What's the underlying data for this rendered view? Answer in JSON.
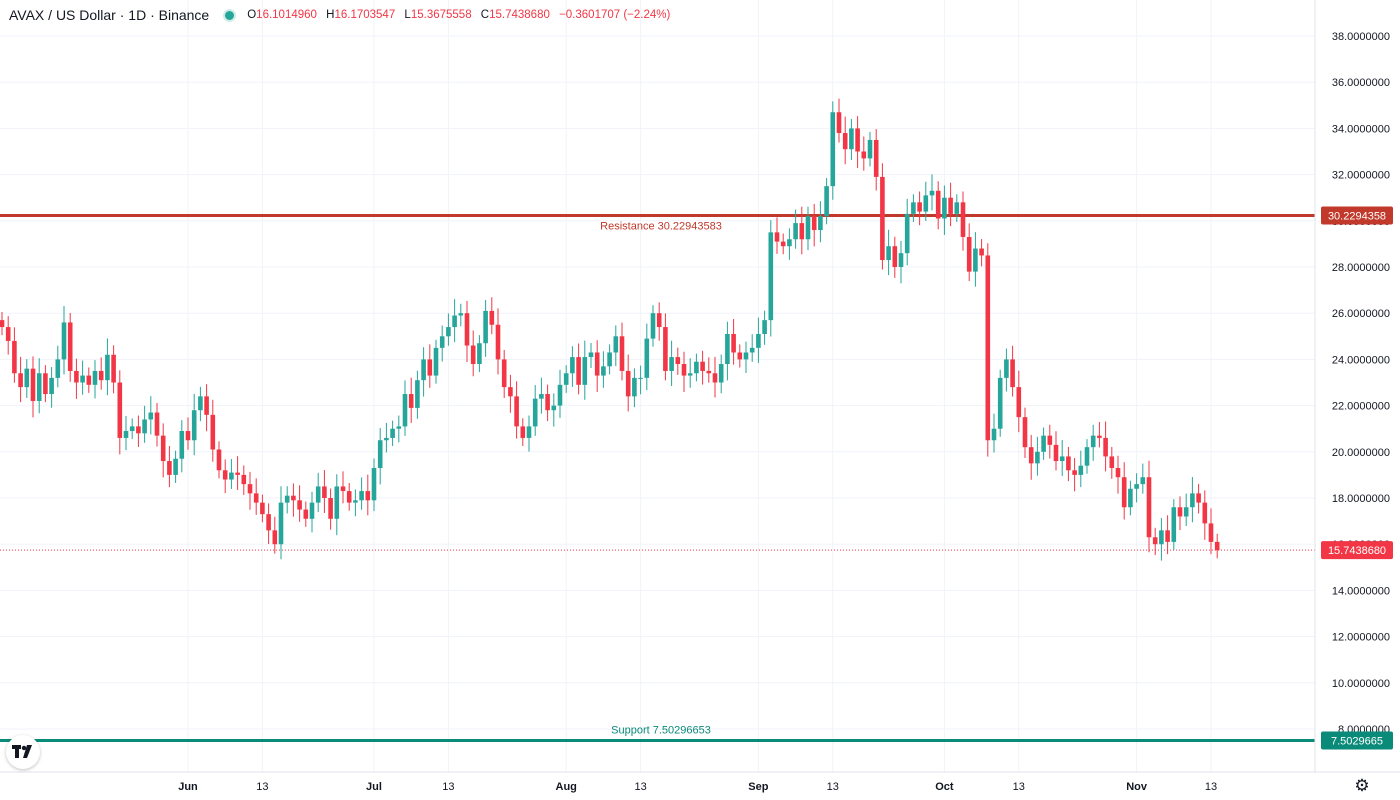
{
  "header": {
    "symbol": "AVAX / US Dollar · 1D · Binance",
    "open_label": "O",
    "open": "16.1014960",
    "high_label": "H",
    "high": "16.1703547",
    "low_label": "L",
    "low": "15.3675558",
    "close_label": "C",
    "close": "15.7438680",
    "change": "−0.3601707 (−2.24%)"
  },
  "icons": {
    "status": "market-status-dot-icon",
    "logo": "tradingview-logo-icon",
    "settings": "gear-icon"
  },
  "colors": {
    "up": "#26a69a",
    "down": "#f23645",
    "resistance": "#c0392b",
    "support": "#0a8a78",
    "current_price": "#f23645"
  },
  "chart_data": {
    "type": "candlestick",
    "title": "AVAX / US Dollar · 1D · Binance",
    "ylim": [
      6.2,
      38.6
    ],
    "y_ticks": [
      "38.0000000",
      "36.0000000",
      "34.0000000",
      "32.0000000",
      "30.0000000",
      "28.0000000",
      "26.0000000",
      "24.0000000",
      "22.0000000",
      "20.0000000",
      "18.0000000",
      "16.0000000",
      "14.0000000",
      "12.0000000",
      "10.0000000",
      "8.0000000"
    ],
    "y_tick_values": [
      38,
      36,
      34,
      32,
      30,
      28,
      26,
      24,
      22,
      20,
      18,
      16,
      14,
      12,
      10,
      8
    ],
    "x_ticks": [
      {
        "label": "Jun",
        "date": "2023-06-01"
      },
      {
        "label": "13",
        "date": "2023-06-13"
      },
      {
        "label": "Jul",
        "date": "2023-07-01"
      },
      {
        "label": "13",
        "date": "2023-07-13"
      },
      {
        "label": "Aug",
        "date": "2023-08-01"
      },
      {
        "label": "13",
        "date": "2023-08-13"
      },
      {
        "label": "Sep",
        "date": "2023-09-01"
      },
      {
        "label": "13",
        "date": "2023-09-13"
      },
      {
        "label": "Oct",
        "date": "2023-10-01"
      },
      {
        "label": "13",
        "date": "2023-10-13"
      },
      {
        "label": "Nov",
        "date": "2023-11-01"
      },
      {
        "label": "13",
        "date": "2023-11-13"
      }
    ],
    "start_date": "2023-05-02",
    "closes": [
      25.4,
      24.8,
      23.4,
      22.8,
      23.6,
      22.2,
      23.4,
      22.5,
      23.2,
      24.0,
      25.6,
      23.5,
      23.0,
      23.3,
      22.9,
      23.5,
      23.1,
      24.2,
      23.0,
      20.6,
      20.9,
      21.1,
      20.8,
      21.4,
      21.7,
      20.7,
      19.6,
      19.0,
      19.7,
      20.9,
      20.5,
      21.8,
      22.4,
      21.6,
      20.1,
      19.2,
      18.8,
      19.1,
      19.0,
      18.6,
      18.2,
      17.8,
      17.3,
      16.6,
      16.0,
      17.8,
      18.1,
      17.9,
      17.5,
      17.1,
      17.8,
      18.5,
      18.0,
      17.1,
      18.5,
      18.3,
      17.8,
      17.9,
      18.3,
      17.9,
      19.3,
      20.5,
      20.6,
      21.0,
      21.1,
      22.5,
      21.9,
      23.1,
      24.0,
      23.3,
      24.5,
      25.0,
      25.4,
      25.9,
      26.0,
      24.6,
      23.8,
      24.7,
      26.1,
      25.5,
      24.0,
      22.8,
      22.4,
      21.1,
      20.6,
      21.1,
      22.3,
      22.5,
      21.8,
      22.0,
      22.9,
      23.4,
      24.1,
      22.9,
      24.1,
      24.3,
      23.3,
      23.7,
      24.3,
      25.0,
      23.5,
      22.4,
      23.2,
      23.2,
      24.9,
      26.0,
      25.4,
      23.5,
      24.1,
      23.8,
      23.3,
      23.4,
      23.9,
      23.5,
      23.4,
      23.0,
      23.8,
      25.1,
      24.3,
      24.0,
      24.3,
      24.5,
      25.1,
      25.7,
      29.5,
      29.1,
      28.9,
      29.2,
      29.9,
      29.2,
      30.2,
      29.6,
      30.2,
      31.5,
      34.7,
      33.8,
      33.1,
      34.0,
      33.0,
      32.7,
      33.5,
      31.9,
      28.3,
      28.9,
      28.0,
      28.6,
      30.3,
      30.8,
      30.4,
      31.1,
      31.3,
      30.1,
      31.0,
      30.3,
      30.8,
      29.3,
      27.8,
      28.8,
      28.5,
      20.5,
      21.0,
      23.2,
      24.0,
      22.8,
      21.5,
      20.2,
      19.5,
      20.0,
      20.7,
      20.3,
      19.6,
      19.8,
      19.2,
      19.0,
      19.4,
      20.2,
      20.7,
      20.6,
      19.8,
      19.3,
      18.9,
      17.6,
      18.4,
      18.6,
      18.9,
      16.3,
      16.0,
      16.6,
      16.1,
      17.6,
      17.2,
      17.6,
      18.2,
      17.8,
      16.9,
      16.1,
      15.74
    ],
    "resistance": {
      "label": "Resistance 30.22943583",
      "value": 30.22943583,
      "axis_label": "30.2294358"
    },
    "support": {
      "label": "Support 7.50296653",
      "value": 7.50296653,
      "axis_label": "7.5029665"
    },
    "current_price": {
      "value": 15.743868,
      "axis_label": "15.7438680"
    }
  }
}
